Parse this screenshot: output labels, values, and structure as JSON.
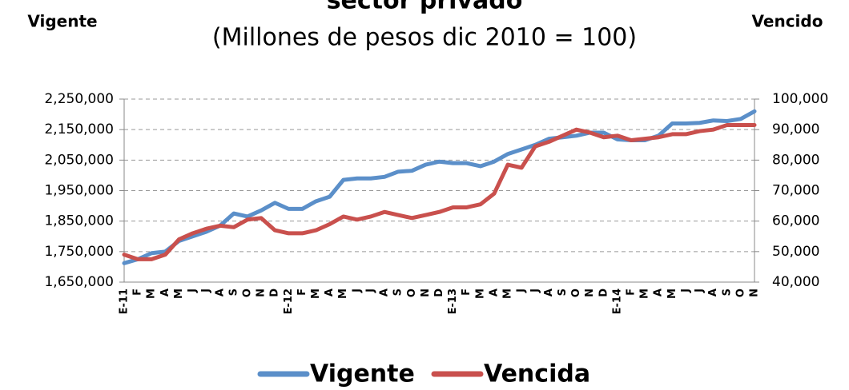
{
  "chart_data": {
    "type": "line",
    "title": "sector privado",
    "subtitle": "(Millones de pesos dic 2010 = 100)",
    "y_label": "Vigente",
    "y2_label": "Vencido",
    "categories": [
      "E-11",
      "F",
      "M",
      "A",
      "M",
      "J",
      "J",
      "A",
      "S",
      "O",
      "N",
      "D",
      "E-12",
      "F",
      "M",
      "A",
      "M",
      "J",
      "J",
      "A",
      "S",
      "O",
      "N",
      "D",
      "E-13",
      "F",
      "M",
      "A",
      "M",
      "J",
      "J",
      "A",
      "S",
      "O",
      "N",
      "D",
      "E-14",
      "F",
      "M",
      "A",
      "M",
      "J",
      "J",
      "A",
      "S",
      "O",
      "N"
    ],
    "series": [
      {
        "name": "Vigente",
        "color": "#5b8fc9",
        "axis": "y",
        "values": [
          1712000,
          1725000,
          1745000,
          1750000,
          1785000,
          1800000,
          1815000,
          1835000,
          1875000,
          1865000,
          1885000,
          1910000,
          1890000,
          1890000,
          1915000,
          1930000,
          1985000,
          1990000,
          1990000,
          1995000,
          2012000,
          2015000,
          2035000,
          2045000,
          2040000,
          2040000,
          2030000,
          2045000,
          2070000,
          2085000,
          2100000,
          2120000,
          2125000,
          2130000,
          2140000,
          2140000,
          2118000,
          2115000,
          2115000,
          2130000,
          2170000,
          2170000,
          2172000,
          2180000,
          2178000,
          2185000,
          2210000
        ]
      },
      {
        "name": "Vencida",
        "color": "#c9504d",
        "axis": "y2",
        "values": [
          49000,
          47500,
          47500,
          49000,
          54000,
          56000,
          57500,
          58500,
          58000,
          60500,
          61000,
          57000,
          56000,
          56000,
          57000,
          59000,
          61500,
          60500,
          61500,
          63000,
          62000,
          61000,
          62000,
          63000,
          64500,
          64500,
          65500,
          69000,
          78500,
          77500,
          84500,
          86000,
          88000,
          90000,
          89000,
          87500,
          88000,
          86500,
          87000,
          87500,
          88500,
          88500,
          89500,
          90000,
          91500,
          91500,
          91500
        ]
      }
    ],
    "ylim": [
      1650000,
      2250000
    ],
    "yticks": [
      {
        "value": 1650000,
        "label": "1,650,000"
      },
      {
        "value": 1750000,
        "label": "1,750,000"
      },
      {
        "value": 1850000,
        "label": "1,850,000"
      },
      {
        "value": 1950000,
        "label": "1,950,000"
      },
      {
        "value": 2050000,
        "label": "2,050,000"
      },
      {
        "value": 2150000,
        "label": "2,150,000"
      },
      {
        "value": 2250000,
        "label": "2,250,000"
      }
    ],
    "y2lim": [
      40000,
      100000
    ],
    "y2ticks": [
      {
        "value": 40000,
        "label": "40,000"
      },
      {
        "value": 50000,
        "label": "50,000"
      },
      {
        "value": 60000,
        "label": "60,000"
      },
      {
        "value": 70000,
        "label": "70,000"
      },
      {
        "value": 80000,
        "label": "80,000"
      },
      {
        "value": 90000,
        "label": "90,000"
      },
      {
        "value": 100000,
        "label": "100,000"
      }
    ],
    "grid": true,
    "legend": "bottom"
  }
}
